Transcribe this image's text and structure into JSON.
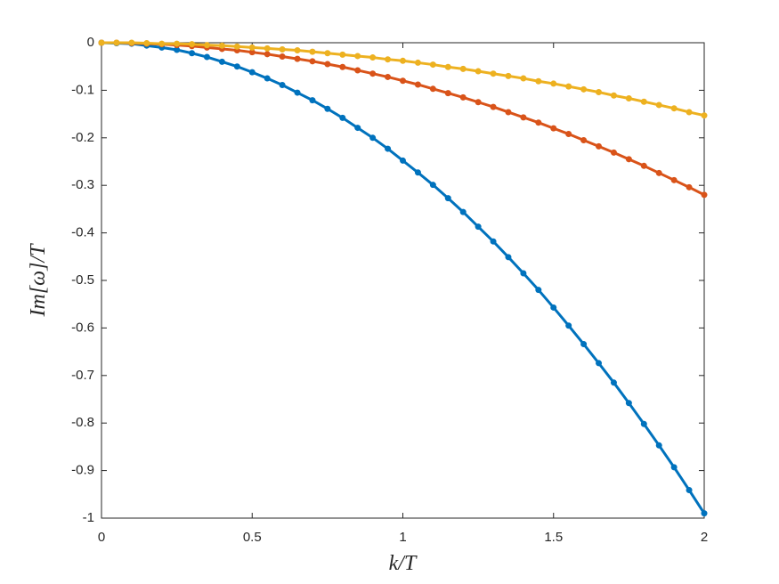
{
  "chart_data": {
    "type": "line",
    "xlabel": "k/T",
    "ylabel": "Im[ω]/T",
    "x": [
      0,
      0.05,
      0.1,
      0.15,
      0.2,
      0.25,
      0.3,
      0.35,
      0.4,
      0.45,
      0.5,
      0.55,
      0.6,
      0.65,
      0.7,
      0.75,
      0.8,
      0.85,
      0.9,
      0.95,
      1,
      1.05,
      1.1,
      1.15,
      1.2,
      1.25,
      1.3,
      1.35,
      1.4,
      1.45,
      1.5,
      1.55,
      1.6,
      1.65,
      1.7,
      1.75,
      1.8,
      1.85,
      1.9,
      1.95,
      2
    ],
    "series": [
      {
        "color": "#0072bd",
        "values": [
          0,
          -0.001,
          -0.002,
          -0.006,
          -0.01,
          -0.015,
          -0.022,
          -0.03,
          -0.04,
          -0.05,
          -0.062,
          -0.075,
          -0.089,
          -0.105,
          -0.121,
          -0.139,
          -0.158,
          -0.179,
          -0.2,
          -0.223,
          -0.248,
          -0.273,
          -0.299,
          -0.327,
          -0.356,
          -0.387,
          -0.418,
          -0.451,
          -0.485,
          -0.52,
          -0.557,
          -0.595,
          -0.634,
          -0.674,
          -0.715,
          -0.758,
          -0.802,
          -0.847,
          -0.893,
          -0.941,
          -0.99
        ]
      },
      {
        "color": "#d95319",
        "values": [
          0,
          0,
          -0.001,
          -0.002,
          -0.003,
          -0.005,
          -0.007,
          -0.01,
          -0.013,
          -0.016,
          -0.02,
          -0.024,
          -0.029,
          -0.034,
          -0.039,
          -0.045,
          -0.051,
          -0.058,
          -0.065,
          -0.072,
          -0.08,
          -0.088,
          -0.097,
          -0.106,
          -0.115,
          -0.125,
          -0.135,
          -0.146,
          -0.157,
          -0.168,
          -0.18,
          -0.192,
          -0.205,
          -0.218,
          -0.231,
          -0.245,
          -0.259,
          -0.274,
          -0.289,
          -0.304,
          -0.32
        ]
      },
      {
        "color": "#edb120",
        "values": [
          0,
          0,
          0,
          -0.001,
          -0.002,
          -0.002,
          -0.003,
          -0.005,
          -0.006,
          -0.008,
          -0.01,
          -0.012,
          -0.014,
          -0.016,
          -0.019,
          -0.022,
          -0.025,
          -0.028,
          -0.031,
          -0.035,
          -0.038,
          -0.042,
          -0.046,
          -0.051,
          -0.055,
          -0.06,
          -0.065,
          -0.07,
          -0.075,
          -0.081,
          -0.086,
          -0.092,
          -0.098,
          -0.104,
          -0.111,
          -0.117,
          -0.124,
          -0.131,
          -0.138,
          -0.146,
          -0.153
        ]
      }
    ],
    "xlim": [
      0,
      2
    ],
    "xticks": [
      0,
      0.5,
      1,
      1.5,
      2
    ],
    "ylim": [
      -1,
      0
    ],
    "yticks": [
      -1,
      -0.9,
      -0.8,
      -0.7,
      -0.6,
      -0.5,
      -0.4,
      -0.3,
      -0.2,
      -0.1,
      0
    ]
  }
}
